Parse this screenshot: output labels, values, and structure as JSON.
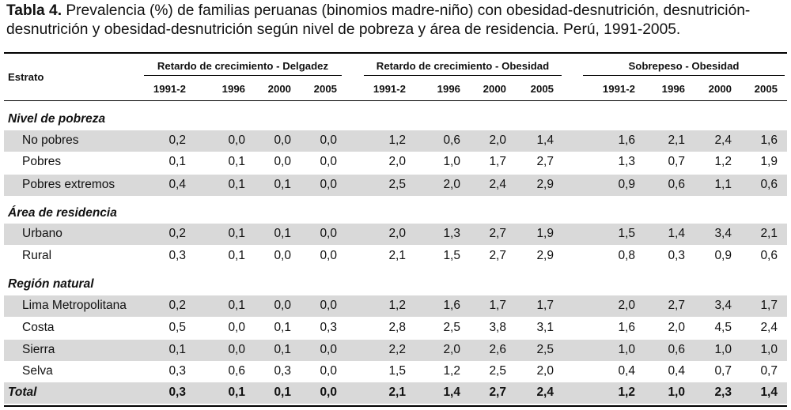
{
  "caption": {
    "label": "Tabla 4.",
    "text": " Prevalencia (%) de familias peruanas (binomios madre-niño) con obesidad-desnutrición, desnutrición-desnutrición y obesidad-desnutrición según nivel de pobreza y área de residencia. Perú, 1991-2005."
  },
  "header": {
    "estrato": "Estrato",
    "groups": [
      "Retardo de crecimiento - Delgadez",
      "Retardo de crecimiento - Obesidad",
      "Sobrepeso - Obesidad"
    ],
    "years": [
      "1991-2",
      "1996",
      "2000",
      "2005",
      "1991-2",
      "1996",
      "2000",
      "2005",
      "1991-2",
      "1996",
      "2000",
      "2005"
    ]
  },
  "rows": [
    {
      "type": "section",
      "label": "Nivel de pobreza"
    },
    {
      "type": "data",
      "label": "No pobres",
      "shaded": true,
      "values": [
        "0,2",
        "0,0",
        "0,0",
        "0,0",
        "1,2",
        "0,6",
        "2,0",
        "1,4",
        "1,6",
        "2,1",
        "2,4",
        "1,6"
      ]
    },
    {
      "type": "data",
      "label": "Pobres",
      "shaded": false,
      "values": [
        "0,1",
        "0,1",
        "0,0",
        "0,0",
        "2,0",
        "1,0",
        "1,7",
        "2,7",
        "1,3",
        "0,7",
        "1,2",
        "1,9"
      ]
    },
    {
      "type": "data",
      "label": "Pobres extremos",
      "shaded": true,
      "values": [
        "0,4",
        "0,1",
        "0,1",
        "0,0",
        "2,5",
        "2,0",
        "2,4",
        "2,9",
        "0,9",
        "0,6",
        "1,1",
        "0,6"
      ]
    },
    {
      "type": "section",
      "label": "Área de residencia"
    },
    {
      "type": "data",
      "label": "Urbano",
      "shaded": true,
      "values": [
        "0,2",
        "0,1",
        "0,1",
        "0,0",
        "2,0",
        "1,3",
        "2,7",
        "1,9",
        "1,5",
        "1,4",
        "3,4",
        "2,1"
      ]
    },
    {
      "type": "data",
      "label": "Rural",
      "shaded": false,
      "values": [
        "0,3",
        "0,1",
        "0,0",
        "0,0",
        "2,1",
        "1,5",
        "2,7",
        "2,9",
        "0,8",
        "0,3",
        "0,9",
        "0,6"
      ]
    },
    {
      "type": "section",
      "label": "Región natural"
    },
    {
      "type": "data",
      "label": "Lima Metropolitana",
      "shaded": true,
      "values": [
        "0,2",
        "0,1",
        "0,0",
        "0,0",
        "1,2",
        "1,6",
        "1,7",
        "1,7",
        "2,0",
        "2,7",
        "3,4",
        "1,7"
      ]
    },
    {
      "type": "data",
      "label": "Costa",
      "shaded": false,
      "values": [
        "0,5",
        "0,0",
        "0,1",
        "0,3",
        "2,8",
        "2,5",
        "3,8",
        "3,1",
        "1,6",
        "2,0",
        "4,5",
        "2,4"
      ]
    },
    {
      "type": "data",
      "label": "Sierra",
      "shaded": true,
      "values": [
        "0,1",
        "0,0",
        "0,1",
        "0,0",
        "2,2",
        "2,0",
        "2,6",
        "2,5",
        "1,0",
        "0,6",
        "1,0",
        "1,0"
      ]
    },
    {
      "type": "data",
      "label": "Selva",
      "shaded": false,
      "values": [
        "0,3",
        "0,6",
        "0,3",
        "0,0",
        "1,5",
        "1,2",
        "2,5",
        "2,0",
        "0,4",
        "0,4",
        "0,7",
        "0,7"
      ]
    },
    {
      "type": "total",
      "label": "Total",
      "shaded": true,
      "values": [
        "0,3",
        "0,1",
        "0,1",
        "0,0",
        "2,1",
        "1,4",
        "2,7",
        "2,4",
        "1,2",
        "1,0",
        "2,3",
        "1,4"
      ]
    }
  ]
}
